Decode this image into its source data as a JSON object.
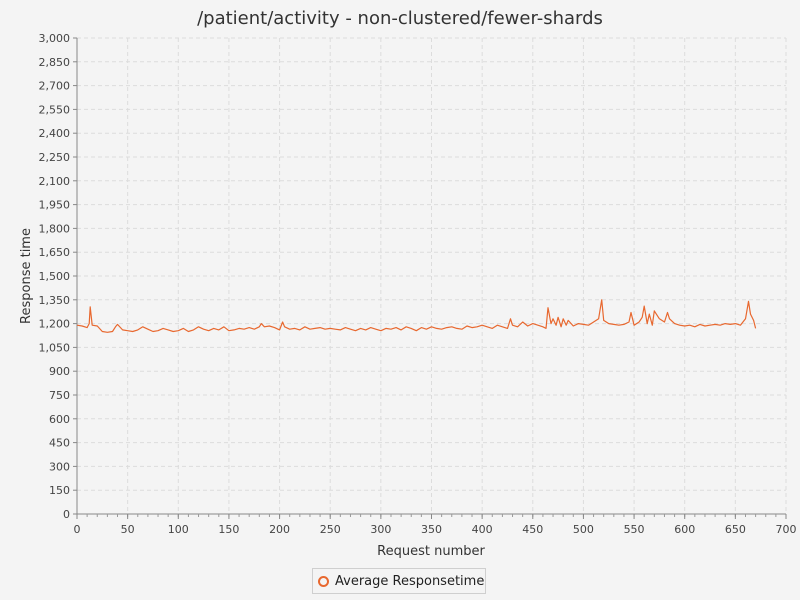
{
  "chart_data": {
    "type": "line",
    "title": "/patient/activity - non-clustered/fewer-shards",
    "xlabel": "Request number",
    "ylabel": "Response time",
    "xlim": [
      0,
      700
    ],
    "ylim": [
      0,
      3000
    ],
    "x_ticks": [
      "0",
      "50",
      "100",
      "150",
      "200",
      "250",
      "300",
      "350",
      "400",
      "450",
      "500",
      "550",
      "600",
      "650",
      "700"
    ],
    "y_ticks": [
      "0",
      "150",
      "300",
      "450",
      "600",
      "750",
      "900",
      "1,050",
      "1,200",
      "1,350",
      "1,500",
      "1,650",
      "1,800",
      "1,950",
      "2,100",
      "2,250",
      "2,400",
      "2,550",
      "2,700",
      "2,850",
      "3,000"
    ],
    "grid": true,
    "legend_position": "bottom",
    "series": [
      {
        "name": "Average Responsetime",
        "color": "#e8682f",
        "x": [
          0,
          5,
          10,
          12,
          13,
          15,
          20,
          25,
          30,
          35,
          38,
          40,
          45,
          50,
          55,
          60,
          65,
          70,
          75,
          80,
          85,
          90,
          95,
          100,
          105,
          110,
          115,
          120,
          125,
          130,
          135,
          140,
          145,
          150,
          155,
          160,
          165,
          170,
          175,
          180,
          182,
          185,
          190,
          195,
          200,
          203,
          205,
          210,
          215,
          220,
          225,
          230,
          235,
          240,
          245,
          250,
          255,
          260,
          265,
          270,
          275,
          280,
          285,
          290,
          295,
          300,
          305,
          310,
          315,
          320,
          325,
          330,
          335,
          340,
          345,
          350,
          355,
          360,
          365,
          370,
          375,
          380,
          385,
          390,
          395,
          400,
          405,
          410,
          415,
          420,
          425,
          428,
          430,
          435,
          440,
          445,
          450,
          455,
          460,
          463,
          465,
          468,
          470,
          473,
          475,
          478,
          480,
          483,
          485,
          490,
          495,
          500,
          505,
          510,
          515,
          518,
          520,
          525,
          530,
          535,
          540,
          545,
          547,
          550,
          555,
          558,
          560,
          563,
          565,
          568,
          570,
          575,
          580,
          583,
          585,
          590,
          595,
          600,
          605,
          610,
          615,
          620,
          625,
          630,
          635,
          640,
          645,
          650,
          655,
          660,
          663,
          665,
          668,
          670
        ],
        "y": [
          1190,
          1185,
          1175,
          1200,
          1305,
          1190,
          1185,
          1150,
          1145,
          1150,
          1180,
          1195,
          1160,
          1155,
          1150,
          1160,
          1180,
          1165,
          1150,
          1155,
          1170,
          1160,
          1150,
          1155,
          1170,
          1150,
          1160,
          1180,
          1165,
          1155,
          1170,
          1160,
          1180,
          1155,
          1160,
          1170,
          1165,
          1175,
          1165,
          1180,
          1200,
          1180,
          1185,
          1175,
          1160,
          1210,
          1180,
          1165,
          1170,
          1160,
          1180,
          1165,
          1170,
          1175,
          1165,
          1170,
          1165,
          1160,
          1175,
          1165,
          1155,
          1170,
          1160,
          1175,
          1165,
          1155,
          1170,
          1165,
          1175,
          1160,
          1180,
          1170,
          1155,
          1175,
          1165,
          1180,
          1170,
          1165,
          1175,
          1180,
          1170,
          1165,
          1185,
          1175,
          1180,
          1190,
          1180,
          1170,
          1190,
          1180,
          1170,
          1230,
          1190,
          1180,
          1210,
          1185,
          1200,
          1190,
          1180,
          1170,
          1300,
          1200,
          1230,
          1190,
          1240,
          1180,
          1230,
          1190,
          1220,
          1185,
          1200,
          1195,
          1190,
          1210,
          1230,
          1350,
          1220,
          1200,
          1195,
          1190,
          1195,
          1210,
          1270,
          1190,
          1210,
          1240,
          1310,
          1200,
          1260,
          1190,
          1280,
          1230,
          1210,
          1270,
          1230,
          1200,
          1190,
          1185,
          1190,
          1180,
          1195,
          1185,
          1190,
          1195,
          1190,
          1200,
          1195,
          1200,
          1190,
          1230,
          1340,
          1260,
          1220,
          1170
        ]
      }
    ]
  }
}
